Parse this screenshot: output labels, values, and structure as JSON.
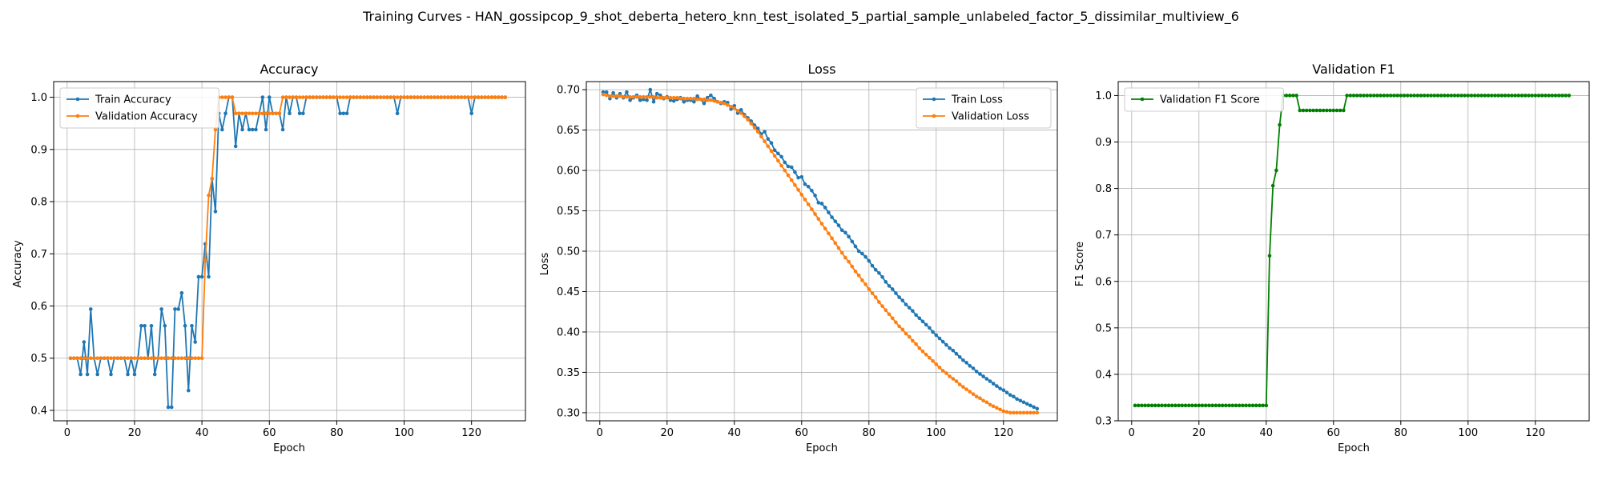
{
  "suptitle": "Training Curves - HAN_gossipcop_9_shot_deberta_hetero_knn_test_isolated_5_partial_sample_unlabeled_factor_5_dissimilar_multiview_6",
  "colors": {
    "blue": "#1f77b4",
    "orange": "#ff7f0e",
    "green": "#008000",
    "grid": "#b0b0b0"
  },
  "chart_data": [
    {
      "type": "line",
      "title": "Accuracy",
      "xlabel": "Epoch",
      "ylabel": "Accuracy",
      "xlim": [
        -4,
        136
      ],
      "ylim": [
        0.38,
        1.03
      ],
      "xticks": [
        0,
        20,
        40,
        60,
        80,
        100,
        120
      ],
      "yticks": [
        0.4,
        0.5,
        0.6,
        0.7,
        0.8,
        0.9,
        1.0
      ],
      "yfmt": 1,
      "grid": true,
      "legend": "upper left",
      "series": [
        {
          "name": "Train Accuracy",
          "color": "#1f77b4",
          "x_start": 1,
          "values": [
            0.5,
            0.5,
            0.5,
            0.469,
            0.531,
            0.469,
            0.594,
            0.5,
            0.469,
            0.5,
            0.5,
            0.5,
            0.469,
            0.5,
            0.5,
            0.5,
            0.5,
            0.469,
            0.5,
            0.469,
            0.5,
            0.562,
            0.562,
            0.5,
            0.562,
            0.469,
            0.5,
            0.594,
            0.562,
            0.406,
            0.406,
            0.594,
            0.594,
            0.625,
            0.562,
            0.438,
            0.562,
            0.531,
            0.656,
            0.656,
            0.719,
            0.656,
            0.844,
            0.781,
            0.969,
            0.938,
            0.969,
            1.0,
            1.0,
            0.906,
            0.969,
            0.938,
            0.969,
            0.938,
            0.938,
            0.938,
            0.969,
            1.0,
            0.938,
            1.0,
            0.969,
            0.969,
            0.969,
            0.938,
            1.0,
            0.969,
            1.0,
            1.0,
            0.969,
            0.969,
            1.0,
            1.0,
            1.0,
            1.0,
            1.0,
            1.0,
            1.0,
            1.0,
            1.0,
            1.0,
            0.969,
            0.969,
            0.969,
            1.0,
            1.0,
            1.0,
            1.0,
            1.0,
            1.0,
            1.0,
            1.0,
            1.0,
            1.0,
            1.0,
            1.0,
            1.0,
            1.0,
            0.969,
            1.0,
            1.0,
            1.0,
            1.0,
            1.0,
            1.0,
            1.0,
            1.0,
            1.0,
            1.0,
            1.0,
            1.0,
            1.0,
            1.0,
            1.0,
            1.0,
            1.0,
            1.0,
            1.0,
            1.0,
            1.0,
            0.969,
            1.0,
            1.0,
            1.0,
            1.0,
            1.0,
            1.0,
            1.0,
            1.0,
            1.0,
            1.0
          ]
        },
        {
          "name": "Validation Accuracy",
          "color": "#ff7f0e",
          "x_start": 1,
          "values": [
            0.5,
            0.5,
            0.5,
            0.5,
            0.5,
            0.5,
            0.5,
            0.5,
            0.5,
            0.5,
            0.5,
            0.5,
            0.5,
            0.5,
            0.5,
            0.5,
            0.5,
            0.5,
            0.5,
            0.5,
            0.5,
            0.5,
            0.5,
            0.5,
            0.5,
            0.5,
            0.5,
            0.5,
            0.5,
            0.5,
            0.5,
            0.5,
            0.5,
            0.5,
            0.5,
            0.5,
            0.5,
            0.5,
            0.5,
            0.5,
            0.688,
            0.812,
            0.844,
            0.938,
            1.0,
            1.0,
            1.0,
            1.0,
            1.0,
            0.969,
            0.969,
            0.969,
            0.969,
            0.969,
            0.969,
            0.969,
            0.969,
            0.969,
            0.969,
            0.969,
            0.969,
            0.969,
            0.969,
            1.0,
            1.0,
            1.0,
            1.0,
            1.0,
            1.0,
            1.0,
            1.0,
            1.0,
            1.0,
            1.0,
            1.0,
            1.0,
            1.0,
            1.0,
            1.0,
            1.0,
            1.0,
            1.0,
            1.0,
            1.0,
            1.0,
            1.0,
            1.0,
            1.0,
            1.0,
            1.0,
            1.0,
            1.0,
            1.0,
            1.0,
            1.0,
            1.0,
            1.0,
            1.0,
            1.0,
            1.0,
            1.0,
            1.0,
            1.0,
            1.0,
            1.0,
            1.0,
            1.0,
            1.0,
            1.0,
            1.0,
            1.0,
            1.0,
            1.0,
            1.0,
            1.0,
            1.0,
            1.0,
            1.0,
            1.0,
            1.0,
            1.0,
            1.0,
            1.0,
            1.0,
            1.0,
            1.0,
            1.0,
            1.0,
            1.0,
            1.0
          ]
        }
      ]
    },
    {
      "type": "line",
      "title": "Loss",
      "xlabel": "Epoch",
      "ylabel": "Loss",
      "xlim": [
        -4,
        136
      ],
      "ylim": [
        0.29,
        0.71
      ],
      "xticks": [
        0,
        20,
        40,
        60,
        80,
        100,
        120
      ],
      "yticks": [
        0.3,
        0.35,
        0.4,
        0.45,
        0.5,
        0.55,
        0.6,
        0.65,
        0.7
      ],
      "yfmt": 2,
      "grid": true,
      "legend": "upper right",
      "series": [
        {
          "name": "Train Loss",
          "color": "#1f77b4",
          "x_start": 1,
          "values": [
            0.697,
            0.697,
            0.689,
            0.696,
            0.69,
            0.695,
            0.69,
            0.697,
            0.687,
            0.69,
            0.693,
            0.687,
            0.688,
            0.687,
            0.7,
            0.685,
            0.695,
            0.693,
            0.689,
            0.691,
            0.687,
            0.686,
            0.688,
            0.69,
            0.685,
            0.687,
            0.687,
            0.685,
            0.692,
            0.688,
            0.683,
            0.69,
            0.693,
            0.689,
            0.685,
            0.683,
            0.685,
            0.684,
            0.676,
            0.68,
            0.671,
            0.675,
            0.669,
            0.665,
            0.661,
            0.656,
            0.652,
            0.645,
            0.648,
            0.639,
            0.634,
            0.625,
            0.621,
            0.617,
            0.61,
            0.605,
            0.604,
            0.598,
            0.591,
            0.592,
            0.583,
            0.58,
            0.575,
            0.569,
            0.56,
            0.559,
            0.554,
            0.548,
            0.542,
            0.537,
            0.532,
            0.526,
            0.523,
            0.518,
            0.512,
            0.506,
            0.5,
            0.497,
            0.493,
            0.488,
            0.482,
            0.477,
            0.473,
            0.468,
            0.462,
            0.457,
            0.453,
            0.448,
            0.443,
            0.439,
            0.434,
            0.43,
            0.426,
            0.421,
            0.417,
            0.413,
            0.409,
            0.405,
            0.4,
            0.396,
            0.392,
            0.388,
            0.384,
            0.38,
            0.377,
            0.373,
            0.369,
            0.365,
            0.362,
            0.358,
            0.355,
            0.351,
            0.348,
            0.345,
            0.342,
            0.339,
            0.336,
            0.333,
            0.33,
            0.328,
            0.325,
            0.322,
            0.32,
            0.317,
            0.315,
            0.313,
            0.311,
            0.309,
            0.307,
            0.305
          ]
        },
        {
          "name": "Validation Loss",
          "color": "#ff7f0e",
          "x_start": 1,
          "values": [
            0.694,
            0.693,
            0.692,
            0.692,
            0.692,
            0.692,
            0.691,
            0.691,
            0.691,
            0.691,
            0.691,
            0.691,
            0.691,
            0.691,
            0.691,
            0.691,
            0.69,
            0.69,
            0.69,
            0.69,
            0.69,
            0.69,
            0.69,
            0.689,
            0.689,
            0.689,
            0.689,
            0.689,
            0.688,
            0.688,
            0.688,
            0.687,
            0.687,
            0.686,
            0.685,
            0.684,
            0.683,
            0.681,
            0.679,
            0.677,
            0.674,
            0.671,
            0.667,
            0.663,
            0.658,
            0.653,
            0.648,
            0.642,
            0.636,
            0.63,
            0.624,
            0.618,
            0.612,
            0.606,
            0.6,
            0.594,
            0.588,
            0.582,
            0.576,
            0.57,
            0.564,
            0.558,
            0.552,
            0.546,
            0.54,
            0.534,
            0.528,
            0.522,
            0.516,
            0.51,
            0.504,
            0.498,
            0.492,
            0.487,
            0.481,
            0.475,
            0.47,
            0.464,
            0.459,
            0.453,
            0.448,
            0.443,
            0.437,
            0.432,
            0.427,
            0.422,
            0.417,
            0.412,
            0.407,
            0.403,
            0.398,
            0.394,
            0.389,
            0.385,
            0.38,
            0.376,
            0.372,
            0.368,
            0.364,
            0.36,
            0.356,
            0.352,
            0.349,
            0.345,
            0.342,
            0.339,
            0.335,
            0.332,
            0.329,
            0.326,
            0.323,
            0.32,
            0.318,
            0.315,
            0.313,
            0.31,
            0.308,
            0.306,
            0.304,
            0.302,
            0.301,
            0.3,
            0.3,
            0.3,
            0.3,
            0.3,
            0.3,
            0.3,
            0.3,
            0.3
          ]
        }
      ]
    },
    {
      "type": "line",
      "title": "Validation F1",
      "xlabel": "Epoch",
      "ylabel": "F1 Score",
      "xlim": [
        -4,
        136
      ],
      "ylim": [
        0.3,
        1.03
      ],
      "xticks": [
        0,
        20,
        40,
        60,
        80,
        100,
        120
      ],
      "yticks": [
        0.3,
        0.4,
        0.5,
        0.6,
        0.7,
        0.8,
        0.9,
        1.0
      ],
      "yfmt": 1,
      "grid": true,
      "legend": "upper left",
      "series": [
        {
          "name": "Validation F1 Score",
          "color": "#008000",
          "x_start": 1,
          "values": [
            0.333,
            0.333,
            0.333,
            0.333,
            0.333,
            0.333,
            0.333,
            0.333,
            0.333,
            0.333,
            0.333,
            0.333,
            0.333,
            0.333,
            0.333,
            0.333,
            0.333,
            0.333,
            0.333,
            0.333,
            0.333,
            0.333,
            0.333,
            0.333,
            0.333,
            0.333,
            0.333,
            0.333,
            0.333,
            0.333,
            0.333,
            0.333,
            0.333,
            0.333,
            0.333,
            0.333,
            0.333,
            0.333,
            0.333,
            0.333,
            0.655,
            0.806,
            0.839,
            0.937,
            1.0,
            1.0,
            1.0,
            1.0,
            1.0,
            0.968,
            0.968,
            0.968,
            0.968,
            0.968,
            0.968,
            0.968,
            0.968,
            0.968,
            0.968,
            0.968,
            0.968,
            0.968,
            0.968,
            1.0,
            1.0,
            1.0,
            1.0,
            1.0,
            1.0,
            1.0,
            1.0,
            1.0,
            1.0,
            1.0,
            1.0,
            1.0,
            1.0,
            1.0,
            1.0,
            1.0,
            1.0,
            1.0,
            1.0,
            1.0,
            1.0,
            1.0,
            1.0,
            1.0,
            1.0,
            1.0,
            1.0,
            1.0,
            1.0,
            1.0,
            1.0,
            1.0,
            1.0,
            1.0,
            1.0,
            1.0,
            1.0,
            1.0,
            1.0,
            1.0,
            1.0,
            1.0,
            1.0,
            1.0,
            1.0,
            1.0,
            1.0,
            1.0,
            1.0,
            1.0,
            1.0,
            1.0,
            1.0,
            1.0,
            1.0,
            1.0,
            1.0,
            1.0,
            1.0,
            1.0,
            1.0,
            1.0,
            1.0,
            1.0,
            1.0,
            1.0
          ]
        }
      ]
    }
  ]
}
